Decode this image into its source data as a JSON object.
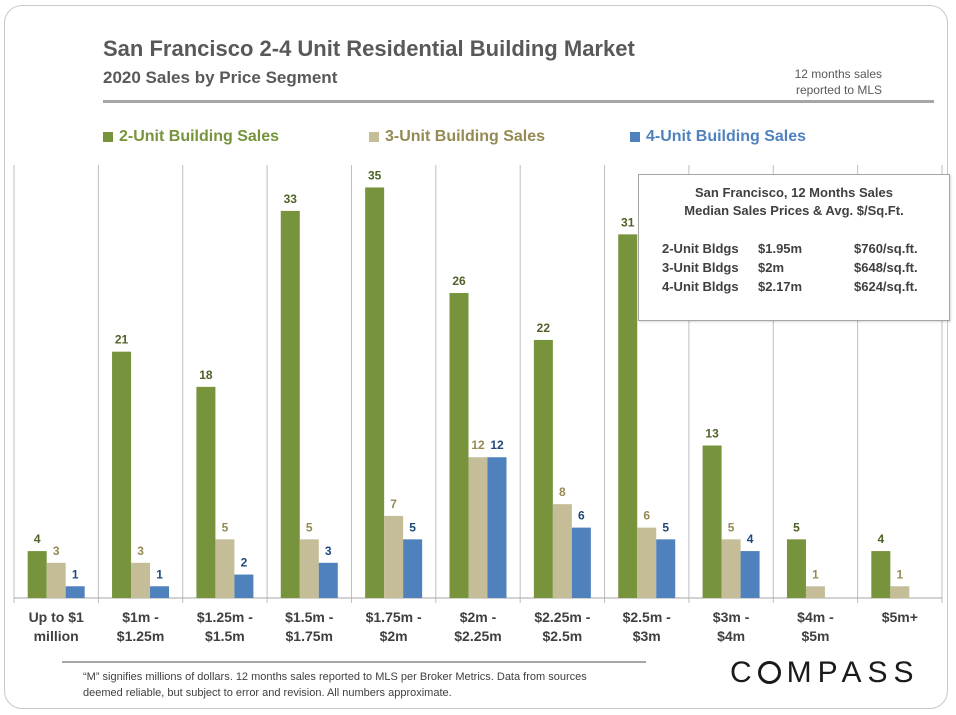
{
  "header": {
    "title": "San Francisco 2-4 Unit Residential Building Market",
    "subtitle": "2020 Sales by Price Segment",
    "note": "12 months sales reported to MLS"
  },
  "colors": {
    "two_unit": "#77933c",
    "three_unit": "#c4bd97",
    "four_unit": "#4f81bd",
    "text": "#595959"
  },
  "legend": [
    {
      "label": "2-Unit Building Sales",
      "color": "#77933c",
      "text_color": "#77933c"
    },
    {
      "label": "3-Unit Building Sales",
      "color": "#c4bd97",
      "text_color": "#948a54"
    },
    {
      "label": "4-Unit Building Sales",
      "color": "#4f81bd",
      "text_color": "#4f81bd"
    }
  ],
  "chart_data": {
    "type": "bar",
    "categories": [
      "Up to $1\nmillion",
      "$1m -\n$1.25m",
      "$1.25m -\n$1.5m",
      "$1.5m -\n$1.75m",
      "$1.75m -\n$2m",
      "$2m -\n$2.25m",
      "$2.25m -\n$2.5m",
      "$2.5m -\n$3m",
      "$3m -\n$4m",
      "$4m -\n$5m",
      "$5m+"
    ],
    "series": [
      {
        "name": "2-Unit Building Sales",
        "values": [
          4,
          21,
          18,
          33,
          35,
          26,
          22,
          31,
          13,
          5,
          4
        ]
      },
      {
        "name": "3-Unit Building Sales",
        "values": [
          3,
          3,
          5,
          5,
          7,
          12,
          8,
          6,
          5,
          1,
          1
        ]
      },
      {
        "name": "4-Unit Building Sales",
        "values": [
          1,
          1,
          2,
          3,
          5,
          12,
          6,
          5,
          4,
          null,
          null
        ]
      }
    ],
    "ylim": [
      0,
      37
    ],
    "grid": "vertical separators",
    "legend_position": "top"
  },
  "info_box": {
    "title_line1": "San Francisco, 12 Months Sales",
    "title_line2": "Median Sales Prices & Avg. $/Sq.Ft.",
    "rows": [
      {
        "type": "2-Unit Bldgs",
        "price": "$1.95m",
        "psf": "$760/sq.ft."
      },
      {
        "type": "3-Unit Bldgs",
        "price": "$2m",
        "psf": "$648/sq.ft."
      },
      {
        "type": "4-Unit Bldgs",
        "price": "$2.17m",
        "psf": "$624/sq.ft."
      }
    ]
  },
  "footnote": "“M” signifies millions of dollars. 12 months sales reported to MLS per Broker Metrics. Data from sources deemed reliable, but subject to error and revision. All numbers approximate.",
  "logo": {
    "text_pre": "C",
    "text_post": "MPASS"
  }
}
